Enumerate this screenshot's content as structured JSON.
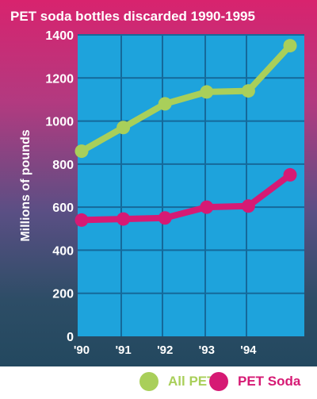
{
  "chart_data": {
    "type": "line",
    "title": "PET soda bottles discarded 1990-1995",
    "ylabel": "Millions of pounds",
    "xlabel": "",
    "x_tick_labels": [
      "'90",
      "'91",
      "'92",
      "'93",
      "'94",
      ""
    ],
    "y_ticks": [
      0,
      200,
      400,
      600,
      800,
      1000,
      1200,
      1400
    ],
    "ylim": [
      0,
      1400
    ],
    "grid": true,
    "legend_position": "bottom",
    "series": [
      {
        "name": "All PET",
        "color": "#a9cf5a",
        "values": [
          860,
          970,
          1080,
          1135,
          1140,
          1350
        ]
      },
      {
        "name": "PET Soda",
        "color": "#d61a74",
        "values": [
          540,
          545,
          550,
          600,
          605,
          750
        ]
      }
    ]
  },
  "colors": {
    "plot_background": "#1ea3dc",
    "grid": "#15699a",
    "text": "#ffffff"
  }
}
